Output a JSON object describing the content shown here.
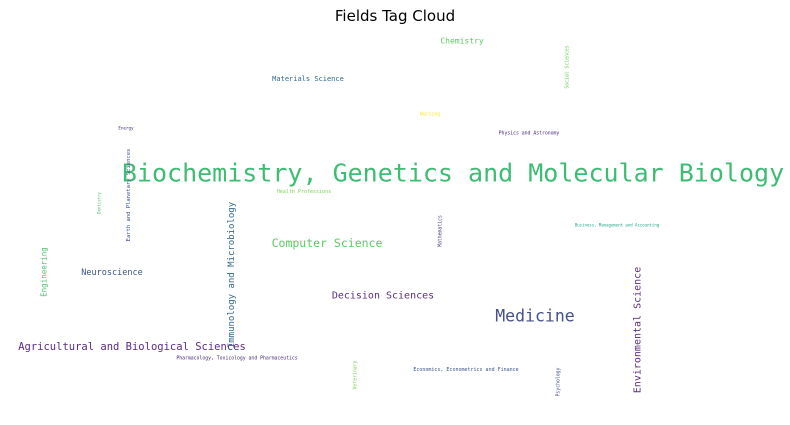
{
  "chart_data": {
    "type": "word_cloud",
    "title": "Fields Tag Cloud",
    "colormap": "viridis",
    "words": [
      {
        "text": "Biochemistry, Genetics and Molecular Biology",
        "weight": 100,
        "color": "#3fbc73",
        "orientation": "horizontal"
      },
      {
        "text": "Medicine",
        "weight": 68,
        "color": "#46508a",
        "orientation": "horizontal"
      },
      {
        "text": "Computer Science",
        "weight": 50,
        "color": "#5ec962",
        "orientation": "horizontal"
      },
      {
        "text": "Agricultural and Biological Sciences",
        "weight": 48,
        "color": "#5a2d82",
        "orientation": "horizontal"
      },
      {
        "text": "Environmental Science",
        "weight": 48,
        "color": "#5a2d82",
        "orientation": "vertical"
      },
      {
        "text": "Immunology and Microbiology",
        "weight": 46,
        "color": "#31688e",
        "orientation": "vertical"
      },
      {
        "text": "Decision Sciences",
        "weight": 46,
        "color": "#5a2d82",
        "orientation": "horizontal"
      },
      {
        "text": "Neuroscience",
        "weight": 40,
        "color": "#3b528b",
        "orientation": "horizontal"
      },
      {
        "text": "Engineering",
        "weight": 36,
        "color": "#4ac16d",
        "orientation": "vertical"
      },
      {
        "text": "Chemistry",
        "weight": 36,
        "color": "#5ec962",
        "orientation": "horizontal"
      },
      {
        "text": "Materials Science",
        "weight": 34,
        "color": "#31688e",
        "orientation": "horizontal"
      },
      {
        "text": "Earth and Planetary Sciences",
        "weight": 26,
        "color": "#3b528b",
        "orientation": "vertical"
      },
      {
        "text": "Social Sciences",
        "weight": 22,
        "color": "#6ccd5a",
        "orientation": "vertical"
      },
      {
        "text": "Physics and Astronomy",
        "weight": 22,
        "color": "#482878",
        "orientation": "horizontal"
      },
      {
        "text": "Nursing",
        "weight": 20,
        "color": "#fde725",
        "orientation": "horizontal"
      },
      {
        "text": "Health Professions",
        "weight": 20,
        "color": "#7ad151",
        "orientation": "horizontal"
      },
      {
        "text": "Mathematics",
        "weight": 20,
        "color": "#443983",
        "orientation": "vertical"
      },
      {
        "text": "Pharmacology, Toxicology and Pharmaceutics",
        "weight": 20,
        "color": "#482878",
        "orientation": "horizontal"
      },
      {
        "text": "Economics, Econometrics and Finance",
        "weight": 20,
        "color": "#3b528b",
        "orientation": "horizontal"
      },
      {
        "text": "Psychology",
        "weight": 20,
        "color": "#46508a",
        "orientation": "vertical"
      },
      {
        "text": "Veterinary",
        "weight": 20,
        "color": "#7ad151",
        "orientation": "vertical"
      },
      {
        "text": "Dentistry",
        "weight": 18,
        "color": "#4ac16d",
        "orientation": "vertical"
      },
      {
        "text": "Energy",
        "weight": 18,
        "color": "#482878",
        "orientation": "horizontal"
      },
      {
        "text": "Business, Management and Accounting",
        "weight": 16,
        "color": "#20a386",
        "orientation": "horizontal"
      }
    ]
  }
}
